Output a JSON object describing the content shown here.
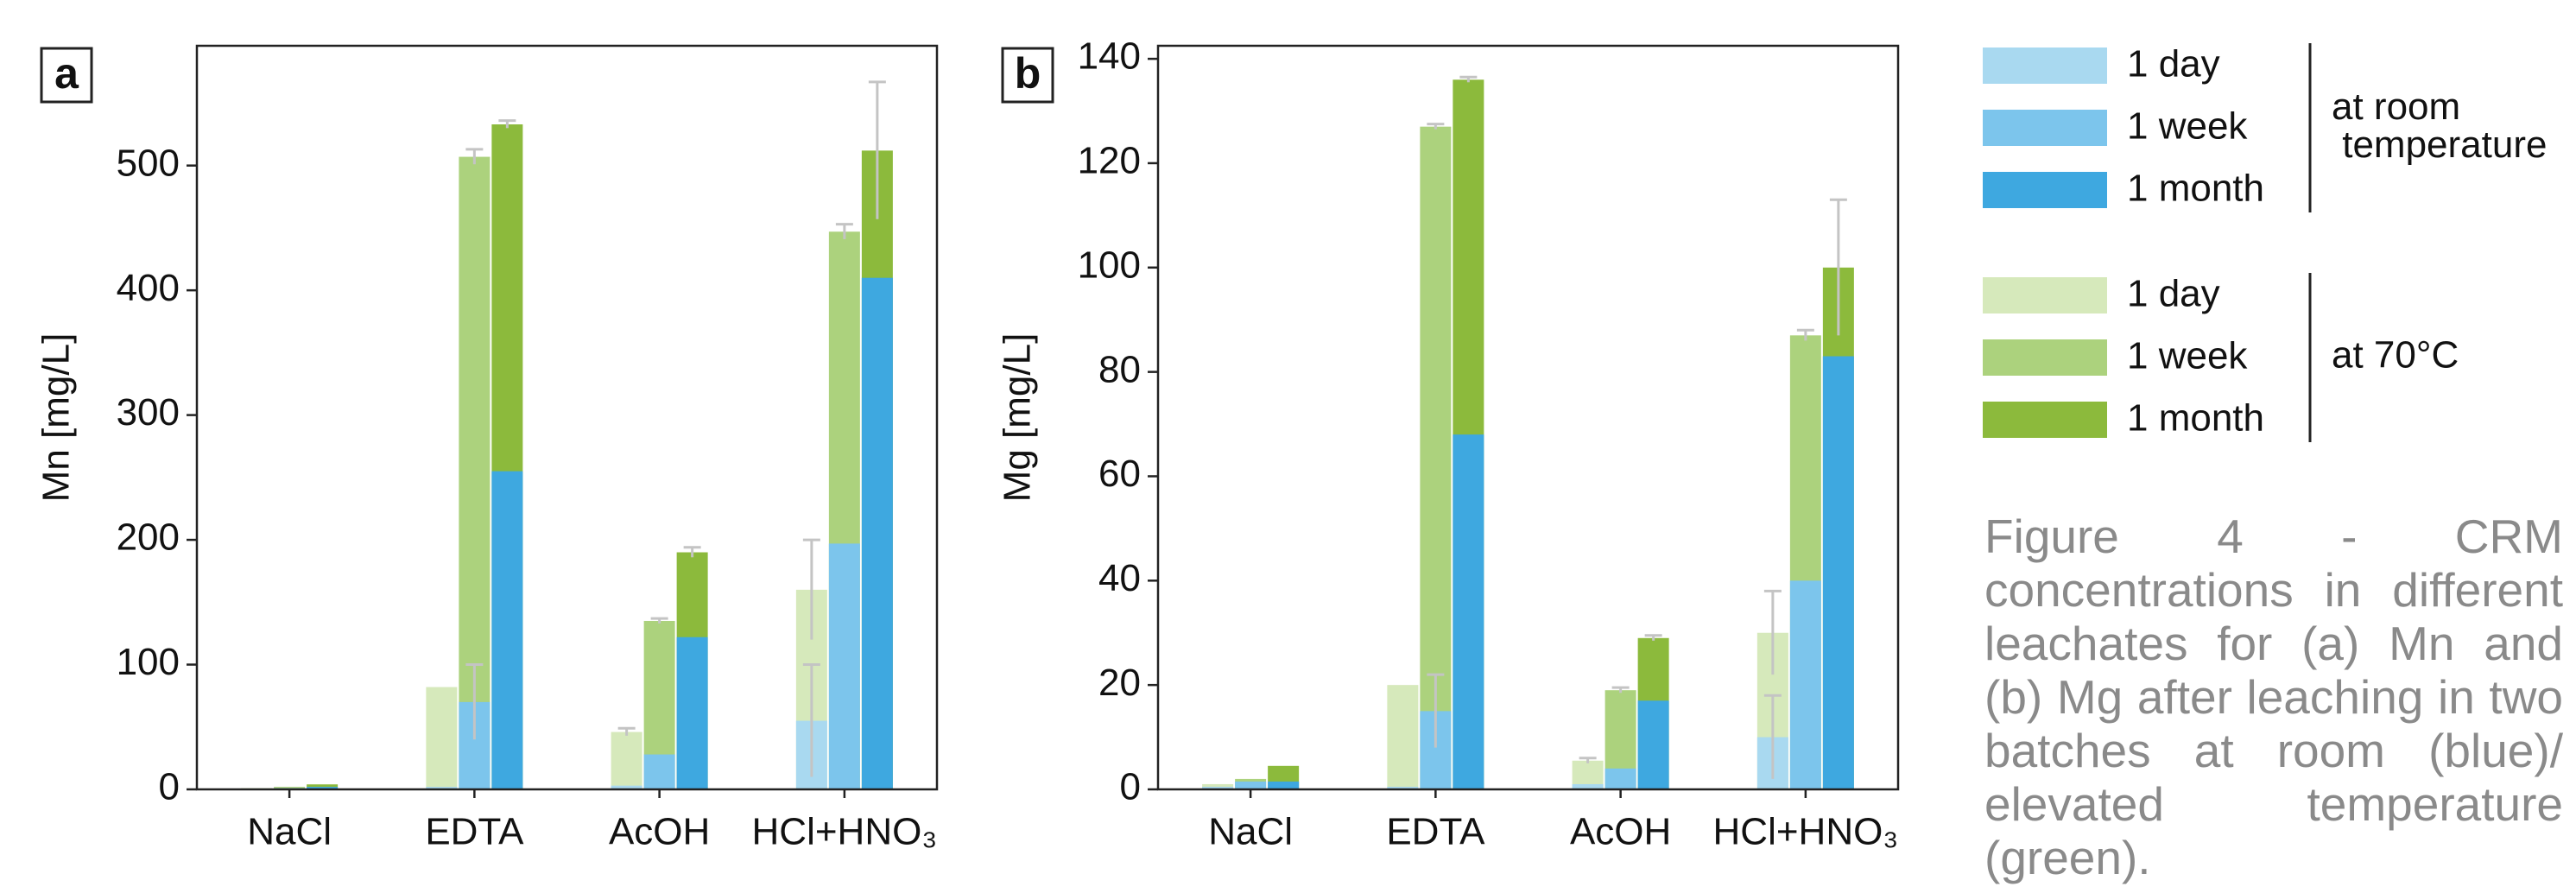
{
  "chart_data": [
    {
      "type": "bar",
      "panel": "a",
      "ylabel": "Mn [mg/L]",
      "categories": [
        "NaCl",
        "EDTA",
        "AcOH",
        "HCl+HNO₃"
      ],
      "ylim": [
        0,
        596
      ],
      "yticks": [
        0,
        100,
        200,
        300,
        400,
        500
      ],
      "series": [
        {
          "name": "1 day",
          "group": "at room temperature",
          "color": "#a9d9f0",
          "values": [
            0,
            2,
            3,
            55
          ],
          "errors": [
            null,
            null,
            null,
            45
          ]
        },
        {
          "name": "1 week",
          "group": "at room temperature",
          "color": "#7cc5ec",
          "values": [
            1,
            70,
            28,
            197
          ],
          "errors": [
            null,
            30,
            null,
            null
          ]
        },
        {
          "name": "1 month",
          "group": "at room temperature",
          "color": "#3ea8e0",
          "values": [
            2,
            255,
            122,
            410
          ],
          "errors": [
            null,
            null,
            null,
            null
          ]
        },
        {
          "name": "1 day",
          "group": "at 70°C",
          "color": "#d6e9bb",
          "values": [
            1,
            82,
            46,
            160
          ],
          "errors": [
            null,
            null,
            3,
            40
          ]
        },
        {
          "name": "1 week",
          "group": "at 70°C",
          "color": "#acd27d",
          "values": [
            2,
            507,
            135,
            447
          ],
          "errors": [
            null,
            6,
            2,
            6
          ]
        },
        {
          "name": "1 month",
          "group": "at 70°C",
          "color": "#8cba3c",
          "values": [
            4,
            533,
            190,
            512
          ],
          "errors": [
            null,
            3,
            4,
            55
          ]
        }
      ]
    },
    {
      "type": "bar",
      "panel": "b",
      "ylabel": "Mg [mg/L]",
      "categories": [
        "NaCl",
        "EDTA",
        "AcOH",
        "HCl+HNO₃"
      ],
      "ylim": [
        0,
        142.5
      ],
      "yticks": [
        0,
        20,
        40,
        60,
        80,
        100,
        120,
        140
      ],
      "series": [
        {
          "color": "#a9d9f0",
          "values": [
            0.5,
            0.5,
            1,
            10
          ],
          "errors": [
            null,
            null,
            null,
            8
          ]
        },
        {
          "color": "#7cc5ec",
          "values": [
            1.5,
            15,
            4,
            40
          ],
          "errors": [
            null,
            7,
            null,
            null
          ]
        },
        {
          "color": "#3ea8e0",
          "values": [
            1.5,
            68,
            17,
            83
          ],
          "errors": [
            null,
            null,
            null,
            null
          ]
        },
        {
          "color": "#d6e9bb",
          "values": [
            1,
            20,
            5.5,
            30
          ],
          "errors": [
            null,
            null,
            0.5,
            8
          ]
        },
        {
          "color": "#acd27d",
          "values": [
            2,
            127,
            19,
            87
          ],
          "errors": [
            null,
            0.5,
            0.5,
            1
          ]
        },
        {
          "color": "#8cba3c",
          "values": [
            4.5,
            136,
            29,
            100
          ],
          "errors": [
            null,
            0.5,
            0.5,
            13
          ]
        }
      ]
    }
  ],
  "caption": "Figure 4 - CRM concentrations in different leachates for (a) Mn and (b) Mg after leaching in two batches at room (blue)/ elevated temperature (green)."
}
